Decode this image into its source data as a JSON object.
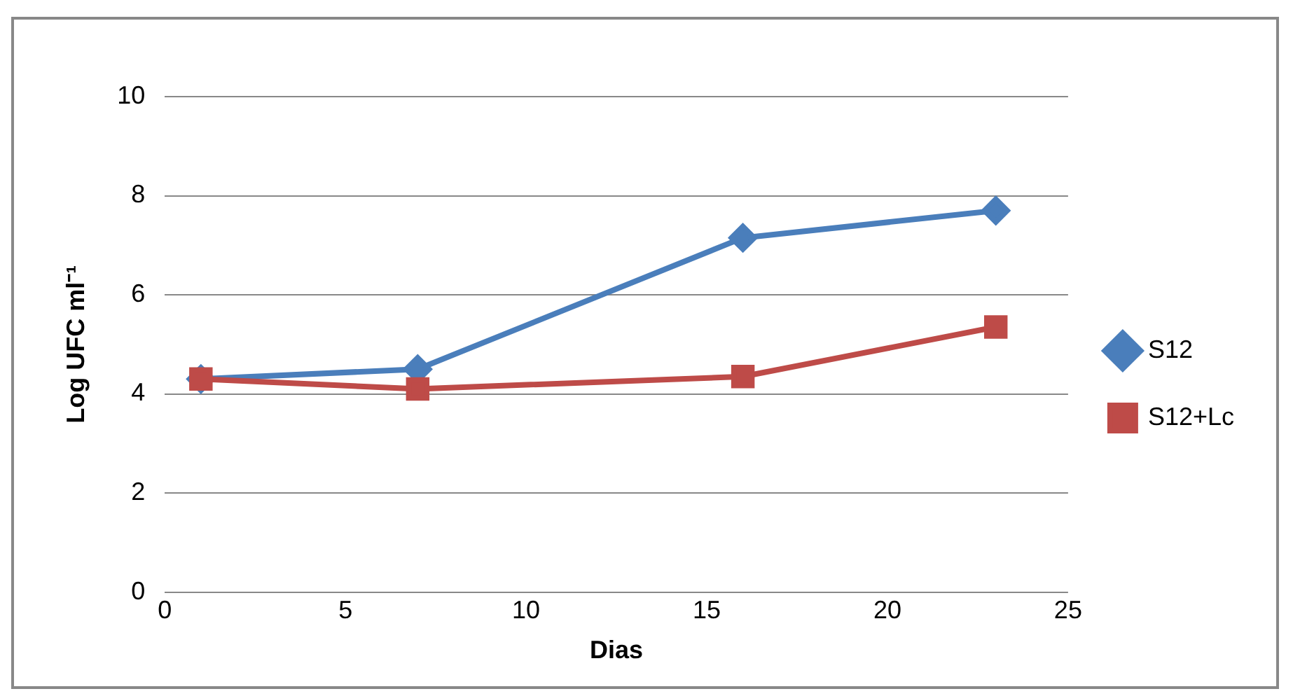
{
  "chart_data": {
    "type": "line",
    "xlabel": "Dias",
    "ylabel": "Log UFC ml⁻¹",
    "x": [
      1,
      7,
      16,
      23
    ],
    "series": [
      {
        "name": "S12",
        "color": "#4a7ebb",
        "values": [
          4.3,
          4.5,
          7.15,
          7.7
        ],
        "marker": "diamond"
      },
      {
        "name": "S12+Lc",
        "color": "#be4b48",
        "values": [
          4.3,
          4.1,
          4.35,
          5.35
        ],
        "marker": "square"
      }
    ],
    "xlim": [
      0,
      25
    ],
    "xticks": [
      0,
      5,
      10,
      15,
      20,
      25
    ],
    "ylim": [
      0,
      10
    ],
    "yticks": [
      0,
      2,
      4,
      6,
      8,
      10
    ],
    "grid": "y",
    "legend": "right",
    "line_style": "solid"
  }
}
